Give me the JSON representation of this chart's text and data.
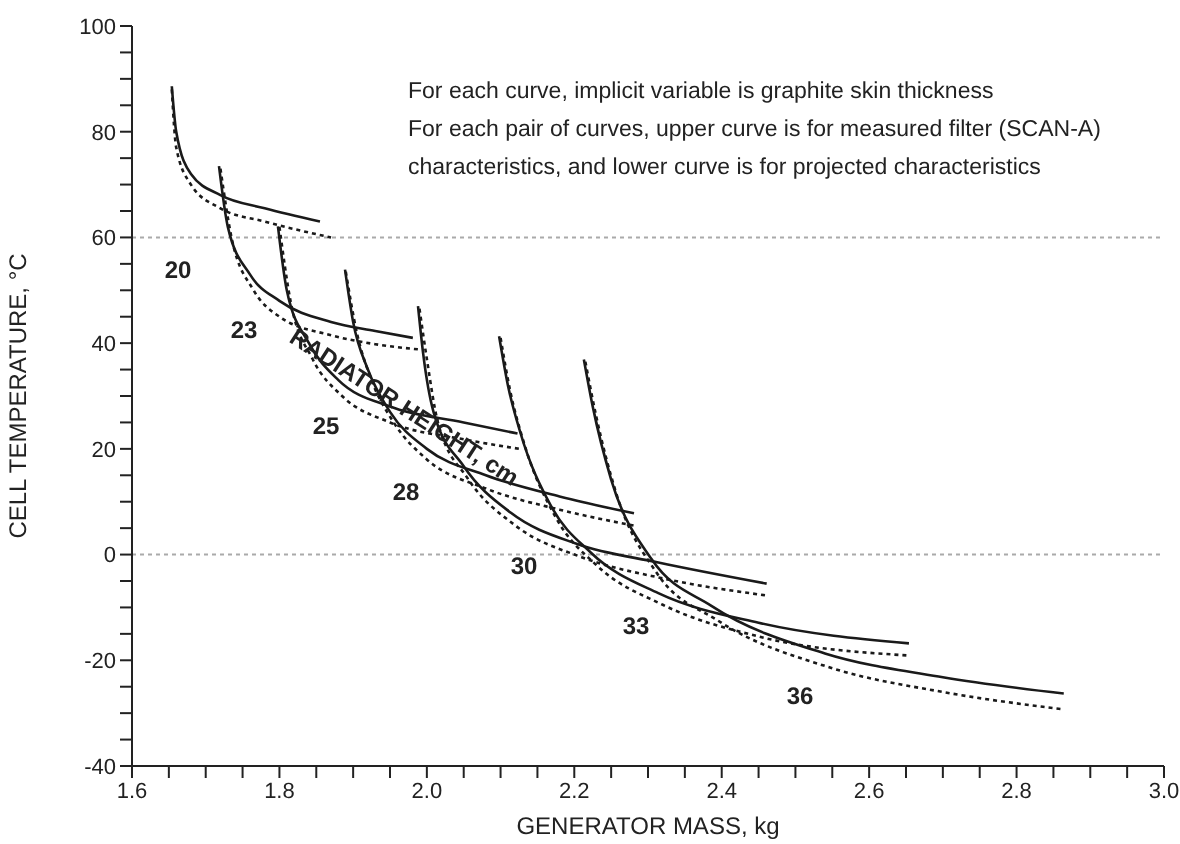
{
  "chart_data": {
    "type": "line",
    "xlabel": "GENERATOR MASS, kg",
    "ylabel": "CELL TEMPERATURE, °C",
    "xlim": [
      1.6,
      3.0
    ],
    "ylim": [
      -40,
      100
    ],
    "xticks": [
      1.6,
      {
        "value": 1.65,
        "label": null
      },
      {
        "value": 1.7,
        "label": null
      },
      {
        "value": 1.75,
        "label": null
      },
      1.8,
      {
        "value": 1.85,
        "label": null
      },
      {
        "value": 1.9,
        "label": null
      },
      {
        "value": 1.95,
        "label": null
      },
      {
        "value": 2,
        "label": "2.0"
      },
      {
        "value": 2.05,
        "label": null
      },
      {
        "value": 2.1,
        "label": null
      },
      {
        "value": 2.15,
        "label": null
      },
      2.2,
      {
        "value": 2.25,
        "label": null
      },
      {
        "value": 2.3,
        "label": null
      },
      {
        "value": 2.35,
        "label": null
      },
      2.4,
      {
        "value": 2.45,
        "label": null
      },
      {
        "value": 2.5,
        "label": null
      },
      {
        "value": 2.55,
        "label": null
      },
      2.6,
      {
        "value": 2.65,
        "label": null
      },
      {
        "value": 2.7,
        "label": null
      },
      {
        "value": 2.75,
        "label": null
      },
      2.8,
      {
        "value": 2.85,
        "label": null
      },
      {
        "value": 2.9,
        "label": null
      },
      {
        "value": 2.95,
        "label": null
      },
      {
        "value": 3,
        "label": "3.0"
      }
    ],
    "yticks": [
      -40,
      {
        "value": -35,
        "label": null
      },
      {
        "value": -30,
        "label": null
      },
      {
        "value": -25,
        "label": null
      },
      -20,
      {
        "value": -15,
        "label": null
      },
      {
        "value": -10,
        "label": null
      },
      {
        "value": -5,
        "label": null
      },
      0,
      {
        "value": 5,
        "label": null
      },
      {
        "value": 10,
        "label": null
      },
      {
        "value": 15,
        "label": null
      },
      20,
      {
        "value": 25,
        "label": null
      },
      {
        "value": 30,
        "label": null
      },
      {
        "value": 35,
        "label": null
      },
      40,
      {
        "value": 45,
        "label": null
      },
      {
        "value": 50,
        "label": null
      },
      {
        "value": 55,
        "label": null
      },
      60,
      {
        "value": 65,
        "label": null
      },
      {
        "value": 70,
        "label": null
      },
      {
        "value": 75,
        "label": null
      },
      80,
      {
        "value": 85,
        "label": null
      },
      {
        "value": 90,
        "label": null
      },
      {
        "value": 95,
        "label": null
      },
      100
    ],
    "ref_lines": [
      {
        "axis": "y",
        "value": 60,
        "color": "#aaaaaa",
        "line_style": "dotted"
      },
      {
        "axis": "y",
        "value": 0,
        "color": "#aaaaaa",
        "line_style": "dotted"
      }
    ],
    "series": [
      {
        "color": "#1a1a1a",
        "line_style": "solid",
        "x": [
          1.654,
          1.66,
          1.68,
          1.72,
          1.78,
          1.855
        ],
        "values": [
          88.6,
          80,
          72,
          68,
          65.5,
          63
        ]
      },
      {
        "color": "#1a1a1a",
        "line_style": "dotted",
        "x": [
          1.654,
          1.66,
          1.68,
          1.72,
          1.78,
          1.87
        ],
        "values": [
          88,
          77,
          70,
          65.5,
          63,
          60
        ]
      },
      {
        "color": "#1a1a1a",
        "line_style": "solid",
        "x": [
          1.718,
          1.73,
          1.76,
          1.8,
          1.87,
          1.93,
          1.981
        ],
        "values": [
          73.5,
          62,
          53,
          48,
          44,
          42.3,
          41
        ]
      },
      {
        "color": "#1a1a1a",
        "line_style": "dotted",
        "x": [
          1.72,
          1.735,
          1.765,
          1.8,
          1.87,
          1.93,
          1.99
        ],
        "values": [
          73,
          60,
          50,
          45,
          41.5,
          39.8,
          38.8
        ]
      },
      {
        "color": "#1a1a1a",
        "line_style": "solid",
        "x": [
          1.798,
          1.81,
          1.84,
          1.88,
          1.95,
          2.05,
          2.123
        ],
        "values": [
          62.1,
          50,
          40,
          33,
          28,
          25,
          22.9
        ]
      },
      {
        "color": "#1a1a1a",
        "line_style": "dotted",
        "x": [
          1.8,
          1.815,
          1.845,
          1.885,
          1.95,
          2.05,
          2.13
        ],
        "values": [
          62,
          48,
          37,
          30,
          25,
          21.8,
          19.9
        ]
      },
      {
        "color": "#1a1a1a",
        "line_style": "solid",
        "x": [
          1.889,
          1.9,
          1.92,
          1.95,
          2.0,
          2.08,
          2.18,
          2.281
        ],
        "values": [
          53.9,
          44,
          35,
          27,
          20,
          15,
          11,
          7.8
        ]
      },
      {
        "color": "#1a1a1a",
        "line_style": "dotted",
        "x": [
          1.89,
          1.905,
          1.925,
          1.955,
          2.0,
          2.08,
          2.18,
          2.284
        ],
        "values": [
          53.5,
          42,
          33,
          25,
          18,
          12.5,
          8.5,
          5.4
        ]
      },
      {
        "color": "#1a1a1a",
        "line_style": "solid",
        "x": [
          1.988,
          1.995,
          2.009,
          2.05,
          2.114,
          2.204,
          2.314,
          2.461
        ],
        "values": [
          47,
          38,
          27,
          16.7,
          7.9,
          2,
          -1.5,
          -5.5
        ]
      },
      {
        "color": "#1a1a1a",
        "line_style": "dotted",
        "x": [
          1.99,
          2.0,
          2.015,
          2.055,
          2.12,
          2.21,
          2.32,
          2.464
        ],
        "values": [
          46.5,
          37,
          25,
          14.5,
          5.5,
          -0.5,
          -4.5,
          -7.8
        ]
      },
      {
        "color": "#1a1a1a",
        "line_style": "solid",
        "x": [
          2.098,
          2.11,
          2.127,
          2.168,
          2.223,
          2.314,
          2.45,
          2.654
        ],
        "values": [
          41.3,
          32,
          23,
          9.3,
          0.3,
          -7.3,
          -12.9,
          -16.8
        ]
      },
      {
        "color": "#1a1a1a",
        "line_style": "dotted",
        "x": [
          2.1,
          2.113,
          2.132,
          2.175,
          2.23,
          2.32,
          2.45,
          2.654
        ],
        "values": [
          41,
          31,
          21,
          7,
          -2,
          -9.5,
          -15.5,
          -19.1
        ]
      },
      {
        "color": "#1a1a1a",
        "line_style": "solid",
        "x": [
          2.213,
          2.225,
          2.25,
          2.305,
          2.386,
          2.54,
          2.7,
          2.864
        ],
        "values": [
          36.9,
          28,
          14.2,
          -0.9,
          -9.7,
          -18.7,
          -23.2,
          -26.3
        ]
      },
      {
        "color": "#1a1a1a",
        "line_style": "dotted",
        "x": [
          2.215,
          2.23,
          2.256,
          2.312,
          2.395,
          2.55,
          2.7,
          2.864
        ],
        "values": [
          36.5,
          26,
          12,
          -3.5,
          -12.5,
          -21.5,
          -26,
          -29.3
        ]
      }
    ],
    "annotations": [
      "For each curve, implicit variable is graphite skin thickness",
      "For each pair of curves, upper curve is for measured filter (SCAN-A)",
      "characteristics, and lower curve is for projected characteristics",
      "RADIATOR HEIGHT, cm",
      "20",
      "23",
      "25",
      "28",
      "30",
      "33",
      "36"
    ]
  }
}
